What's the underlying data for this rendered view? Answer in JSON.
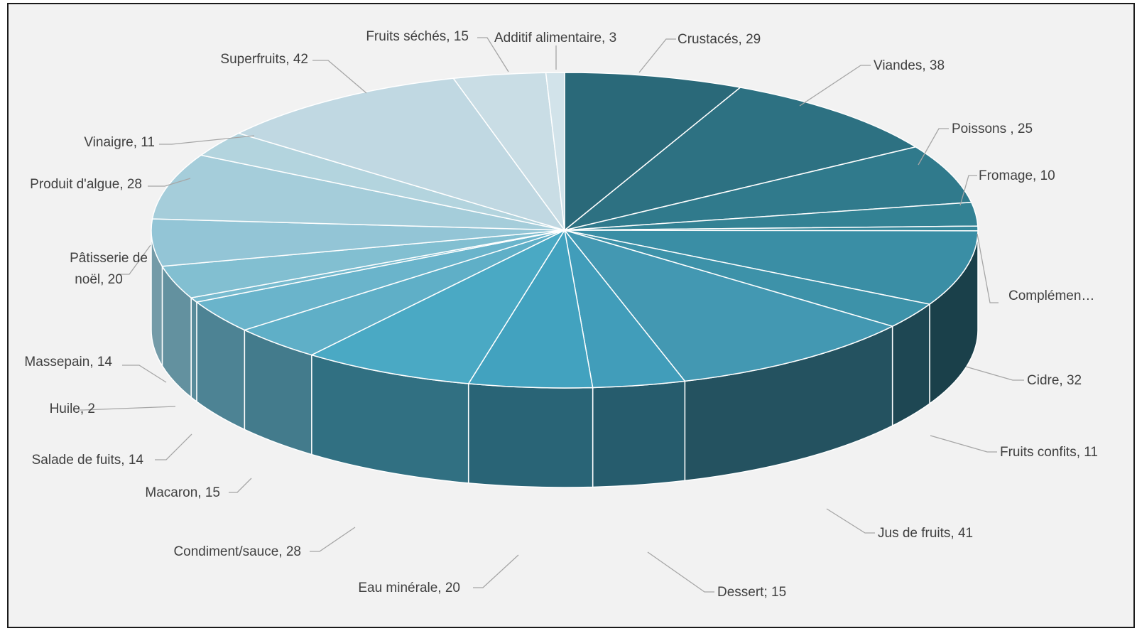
{
  "chart_data": {
    "type": "pie",
    "style": "3d",
    "title": "",
    "slices": [
      {
        "label": "Crustacés, 29",
        "name": "Crustacés",
        "value": 29,
        "color": "#2a6979"
      },
      {
        "label": "Viandes, 38",
        "name": "Viandes",
        "value": 38,
        "color": "#2d7182"
      },
      {
        "label": "Poissons , 25",
        "name": "Poissons",
        "value": 25,
        "color": "#307a8c"
      },
      {
        "label": "Fromage, 10",
        "name": "Fromage",
        "value": 10,
        "color": "#338294"
      },
      {
        "label": "Complémen…",
        "name": "Compléments",
        "value": 2,
        "color": "#36889b"
      },
      {
        "label": "Cidre, 32",
        "name": "Cidre",
        "value": 32,
        "color": "#3a8ea5"
      },
      {
        "label": "Fruits confits, 11",
        "name": "Fruits confits",
        "value": 11,
        "color": "#3d92a9"
      },
      {
        "label": "Jus de fruits, 41",
        "name": "Jus de fruits",
        "value": 41,
        "color": "#4398b2"
      },
      {
        "label": "Dessert; 15",
        "name": "Dessert",
        "value": 15,
        "color": "#419dba"
      },
      {
        "label": "Eau minérale, 20",
        "name": "Eau minérale",
        "value": 20,
        "color": "#42a2bf"
      },
      {
        "label": "Condiment/sauce, 28",
        "name": "Condiment/sauce",
        "value": 28,
        "color": "#4aa9c4"
      },
      {
        "label": "Macaron, 15",
        "name": "Macaron",
        "value": 15,
        "color": "#5fafc7"
      },
      {
        "label": "Salade de fuits, 14",
        "name": "Salade de fuits",
        "value": 14,
        "color": "#6ab4cb"
      },
      {
        "label": "Huile, 2",
        "name": "Huile",
        "value": 2,
        "color": "#78bbcf"
      },
      {
        "label": "Massepain, 14",
        "name": "Massepain",
        "value": 14,
        "color": "#82bfd1"
      },
      {
        "label": "Pâtisserie de noël, 20",
        "name": "Pâtisserie de noël",
        "value": 20,
        "color": "#93c5d6"
      },
      {
        "label": "Produit d'algue, 28",
        "name": "Produit d'algue",
        "value": 28,
        "color": "#a5cdda"
      },
      {
        "label": "Vinaigre, 11",
        "name": "Vinaigre",
        "value": 11,
        "color": "#b3d4de"
      },
      {
        "label": "Superfruits, 42",
        "name": "Superfruits",
        "value": 42,
        "color": "#c0d8e2"
      },
      {
        "label": "Fruits séchés, 15",
        "name": "Fruits séchés",
        "value": 15,
        "color": "#c9dde5"
      },
      {
        "label": "Additif alimentaire, 3",
        "name": "Additif alimentaire",
        "value": 3,
        "color": "#d2e3ea"
      }
    ]
  }
}
